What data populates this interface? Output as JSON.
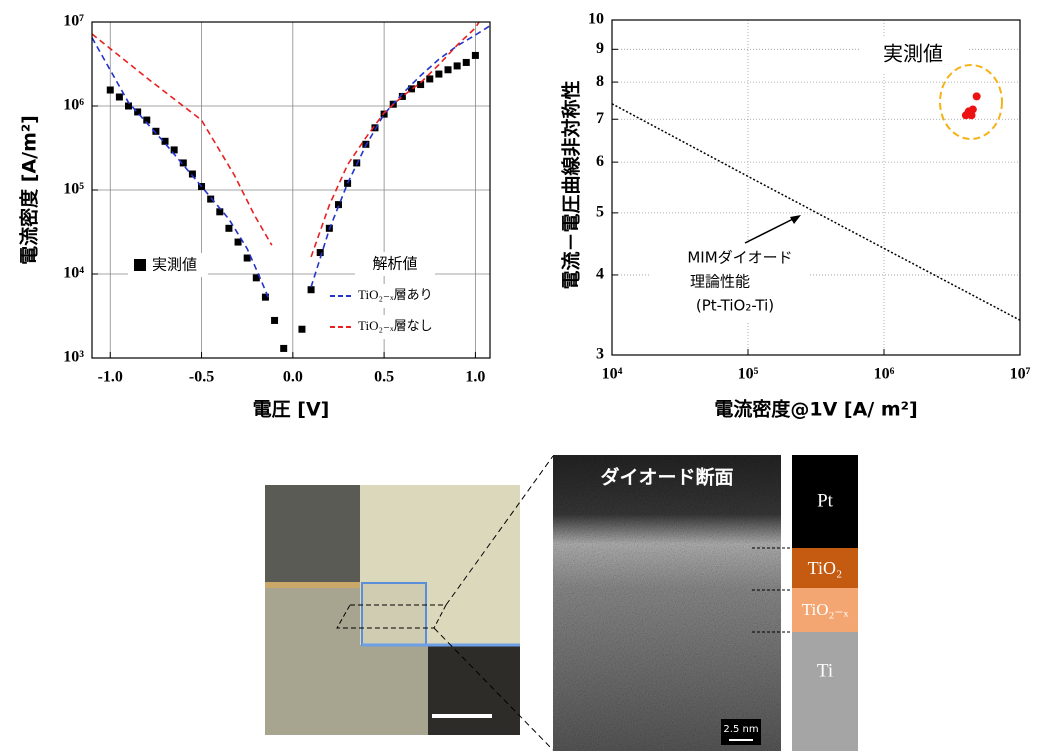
{
  "chart_data": [
    {
      "type": "line",
      "xscale": "linear",
      "yscale": "log",
      "grid": true,
      "xlabel": "電圧 [V]",
      "ylabel": "電流密度 [A/m²]",
      "xlim": [
        -1.1,
        1.08
      ],
      "ylim": [
        1000,
        10000000
      ],
      "xticks": [
        {
          "value": -1,
          "label": "-1.0"
        },
        {
          "value": -0.5,
          "label": "-0.5"
        },
        {
          "value": 0,
          "label": "0.0"
        },
        {
          "value": 0.5,
          "label": "0.5"
        },
        {
          "value": 1,
          "label": "1.0"
        }
      ],
      "yticks": [
        {
          "value": 1000,
          "label": "10³"
        },
        {
          "value": 10000,
          "label": "10⁴"
        },
        {
          "value": 100000,
          "label": "10⁵"
        },
        {
          "value": 1000000,
          "label": "10⁶"
        },
        {
          "value": 10000000,
          "label": "10⁷"
        }
      ],
      "legend_title": "解析値",
      "series": [
        {
          "name": "実測値",
          "mode": "markers",
          "color": "#000000",
          "x": [
            -1,
            -0.95,
            -0.9,
            -0.85,
            -0.8,
            -0.75,
            -0.7,
            -0.65,
            -0.6,
            -0.55,
            -0.5,
            -0.45,
            -0.4,
            -0.35,
            -0.3,
            -0.25,
            -0.2,
            -0.15,
            -0.1,
            -0.05,
            0.05,
            0.1,
            0.15,
            0.2,
            0.25,
            0.3,
            0.35,
            0.4,
            0.45,
            0.5,
            0.55,
            0.6,
            0.65,
            0.7,
            0.75,
            0.8,
            0.85,
            0.9,
            0.95,
            1
          ],
          "values": [
            1550000,
            1280000,
            1000000,
            850000,
            680000,
            500000,
            380000,
            300000,
            210000,
            155000,
            110000,
            78000,
            55000,
            35000,
            24000,
            15500,
            9000,
            5300,
            2800,
            1300,
            2200,
            6500,
            18000,
            35000,
            67000,
            120000,
            210000,
            350000,
            550000,
            800000,
            1050000,
            1300000,
            1600000,
            1800000,
            2100000,
            2400000,
            2700000,
            3000000,
            3300000,
            4000000
          ]
        },
        {
          "name": "TiO₂₋ₓ層あり",
          "mode": "dashed",
          "color": "#2233cc",
          "x": [
            -1.1,
            -0.9,
            -0.7,
            -0.5,
            -0.35,
            -0.25,
            -0.18,
            -0.13,
            0,
            0.1,
            0.2,
            0.3,
            0.4,
            0.5,
            0.6,
            0.7,
            0.8,
            0.9,
            1,
            1.08
          ],
          "values": [
            6500000,
            1100000,
            360000,
            110000,
            45000,
            20000,
            9000,
            5000,
            null,
            7000,
            34000,
            120000,
            340000,
            800000,
            1400000,
            2300000,
            3600000,
            5200000,
            7000000,
            9000000
          ]
        },
        {
          "name": "TiO₂₋ₓ層なし",
          "mode": "dashed",
          "color": "#e82020",
          "x": [
            -1.1,
            -0.78,
            -0.5,
            -0.32,
            -0.21,
            -0.115,
            0,
            0.1,
            0.2,
            0.3,
            0.4,
            0.5,
            0.6,
            0.7,
            0.8,
            0.9,
            1,
            1.02
          ],
          "values": [
            7200000,
            2000000,
            680000,
            150000,
            50000,
            22000,
            null,
            16000,
            66000,
            200000,
            420000,
            830000,
            1300000,
            1900000,
            3100000,
            5300000,
            8500000,
            10000000
          ]
        }
      ]
    },
    {
      "type": "line",
      "xscale": "log",
      "yscale": "log",
      "grid": true,
      "xlabel": "電流密度@1V [A/ m²]",
      "ylabel": "電流－電圧曲線非対称性",
      "xlim": [
        10000,
        10000000
      ],
      "ylim": [
        3,
        10
      ],
      "xticks": [
        {
          "value": 10000,
          "label": "10⁴"
        },
        {
          "value": 100000,
          "label": "10⁵"
        },
        {
          "value": 1000000,
          "label": "10⁶"
        },
        {
          "value": 10000000,
          "label": "10⁷"
        }
      ],
      "yticks": [
        3,
        4,
        5,
        6,
        7,
        8,
        9,
        10
      ],
      "annotations": [
        "MIMダイオード",
        "理論性能",
        "(Pt-TiO₂-Ti)"
      ],
      "series": [
        {
          "name": "実測値",
          "mode": "markers",
          "color": "#ee1111",
          "x": [
            4800000,
            4200000,
            4400000,
            4000000,
            4500000
          ],
          "values": [
            7.6,
            7.2,
            7.1,
            7.1,
            7.25
          ]
        },
        {
          "mode": "dotted",
          "color": "#000000",
          "x": [
            10000,
            100000,
            1000000,
            10000000
          ],
          "values": [
            7.4,
            5.7,
            4.4,
            3.4
          ]
        }
      ]
    }
  ],
  "micrograph": {
    "title": "ダイオード断面",
    "scale_bar": "2.5 nm",
    "layers": [
      "Pt",
      "TiO₂",
      "TiO₂₋ₓ",
      "Ti"
    ]
  }
}
